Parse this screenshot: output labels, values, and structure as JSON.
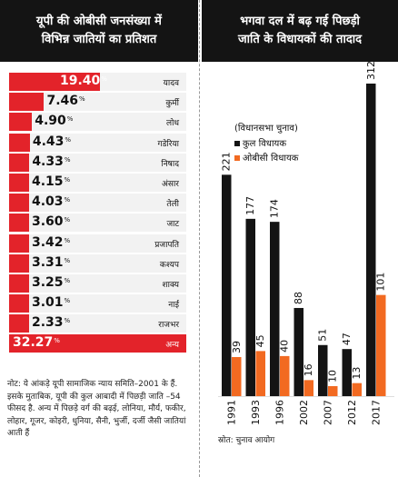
{
  "left": {
    "title_lines": [
      "यूपी की ओबीसी जनसंख्या में",
      "विभिन्न जातियों का प्रतिशत"
    ],
    "note": "नोट: ये आंकड़े यूपी सामाजिक न्याय समिति–2001 के हैं. इसके मुताबिक, यूपी की कुल आबादी में पिछड़ी जाति –54 फीसद है. अन्य में पिछड़े वर्ग की बढ़ई, लोनिया, मौर्य, फकीर, लोहार, गूजर, कोइरी, धुनिया, सैनी, भुर्जी, दर्जी जैसी जातियां आती हैं"
  },
  "right": {
    "title_lines": [
      "भगवा दल में बढ़ गई पिछड़ी",
      "जाति के विधायकों की तादाद"
    ],
    "legend_title": "(विधानसभा चुनाव)",
    "source": "स्रोत: चुनाव आयोग"
  },
  "chart_data": [
    {
      "type": "bar",
      "orientation": "horizontal",
      "title": "यूपी की ओबीसी जनसंख्या में विभिन्न जातियों का प्रतिशत",
      "unit": "%",
      "categories": [
        "यादव",
        "कुर्मी",
        "लोध",
        "गडेरिया",
        "निषाद",
        "अंसार",
        "तेली",
        "जाट",
        "प्रजापति",
        "कश्यप",
        "शाक्य",
        "नाई",
        "राजभर",
        "अन्य"
      ],
      "values": [
        19.4,
        7.46,
        4.9,
        4.43,
        4.33,
        4.15,
        4.03,
        3.6,
        3.42,
        3.31,
        3.25,
        3.01,
        2.33,
        32.27
      ],
      "value_labels": [
        "19.40",
        "7.46",
        "4.90",
        "4.43",
        "4.33",
        "4.15",
        "4.03",
        "3.60",
        "3.42",
        "3.31",
        "3.25",
        "3.01",
        "2.33",
        "32.27"
      ],
      "highlight_last_row": true,
      "colors": {
        "bar": "#e3232a",
        "track": "#f2f2f2"
      }
    },
    {
      "type": "bar",
      "orientation": "vertical",
      "title": "भगवा दल में बढ़ गई पिछड़ी जाति के विधायकों की तादाद",
      "categories": [
        "1991",
        "1993",
        "1996",
        "2002",
        "2007",
        "2012",
        "2017"
      ],
      "series": [
        {
          "name": "कुल विधायक",
          "values": [
            221,
            177,
            174,
            88,
            51,
            47,
            312
          ],
          "color": "#141414"
        },
        {
          "name": "ओबीसी विधायक",
          "values": [
            39,
            45,
            40,
            16,
            10,
            13,
            101
          ],
          "color": "#f26a21"
        }
      ],
      "ylim": [
        0,
        312
      ]
    }
  ]
}
